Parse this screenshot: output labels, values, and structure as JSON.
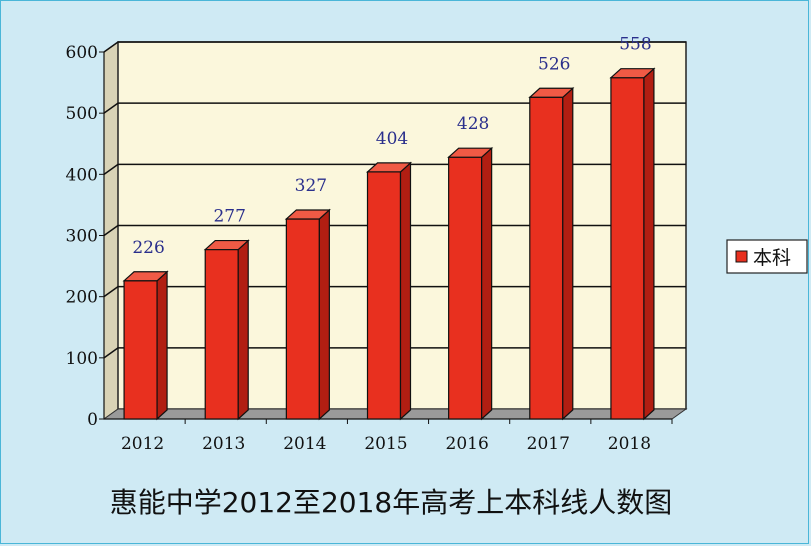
{
  "chart_data": {
    "type": "bar",
    "title": "惠能中学2012至2018年高考上本科线人数图",
    "categories": [
      "2012",
      "2013",
      "2014",
      "2015",
      "2016",
      "2017",
      "2018"
    ],
    "series": [
      {
        "name": "本科",
        "values": [
          226,
          277,
          327,
          404,
          428,
          526,
          558
        ],
        "color": "#e8301f"
      }
    ],
    "data_labels": [
      "226",
      "277",
      "327",
      "404",
      "428",
      "526",
      "558"
    ],
    "y_ticks": [
      "0",
      "100",
      "200",
      "300",
      "400",
      "500",
      "600"
    ],
    "ylim": [
      0,
      600
    ],
    "grid": true,
    "legend_position": "right",
    "background_color": "#cfeaf4",
    "plot_color": "#fbf7dc"
  }
}
